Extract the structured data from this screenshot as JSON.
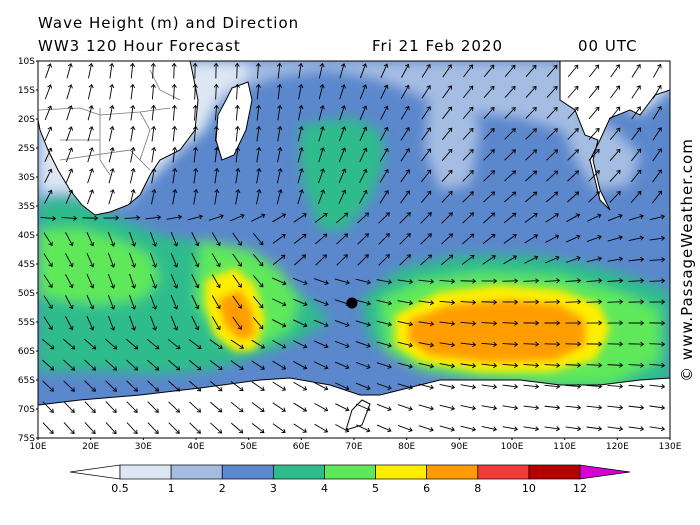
{
  "header": {
    "line1": "Wave Height (m) and Direction",
    "line2": "WW3 120 Hour Forecast",
    "date": "Fri 21 Feb 2020",
    "time": "00 UTC"
  },
  "watermark": "© www.PassageWeather.com",
  "axes": {
    "lat_labels": [
      "10S",
      "15S",
      "20S",
      "25S",
      "30S",
      "35S",
      "40S",
      "45S",
      "50S",
      "55S",
      "60S",
      "65S",
      "70S",
      "75S"
    ],
    "lon_labels": [
      "10E",
      "20E",
      "30E",
      "40E",
      "50E",
      "60E",
      "70E",
      "80E",
      "90E",
      "100E",
      "110E",
      "120E",
      "130E"
    ]
  },
  "legend": {
    "colors": [
      "#ffffff",
      "#dde6f3",
      "#a6bde3",
      "#5b87cc",
      "#2ebc8c",
      "#5ee95a",
      "#ffee00",
      "#ff9d00",
      "#f23a3a",
      "#b50000",
      "#d400d4"
    ],
    "labels": [
      "0.5",
      "1",
      "2",
      "3",
      "4",
      "5",
      "6",
      "8",
      "10",
      "12"
    ]
  },
  "palette": {
    "land": "#ffffff",
    "wave_very_low": "#dde6f3",
    "wave_low": "#a6bde3",
    "wave_moderate": "#5b87cc",
    "wave_3_4": "#2ebc8c",
    "wave_4_5": "#5ee95a",
    "wave_5_6": "#ffee00",
    "wave_6_8": "#ff9d00"
  }
}
